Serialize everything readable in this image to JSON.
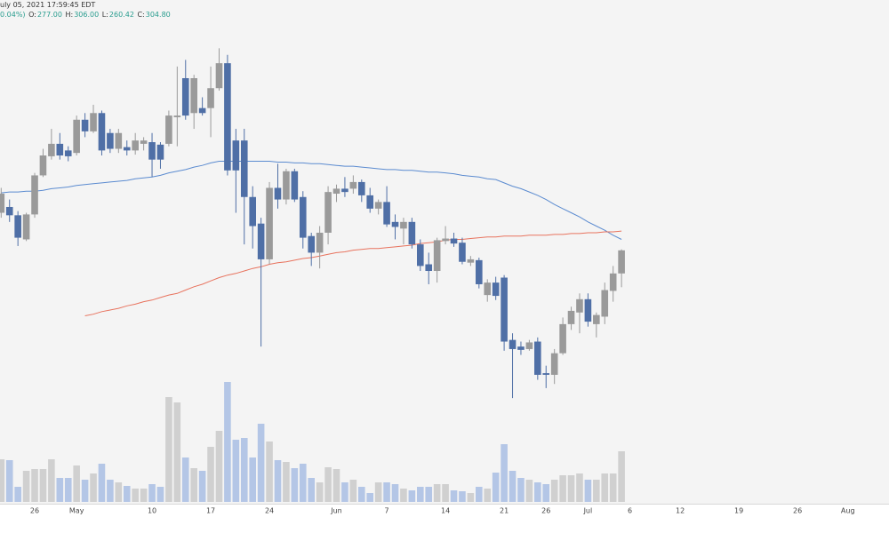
{
  "chart_data": {
    "type": "candlestick",
    "header": {
      "datetime": "uly 05, 2021 17:59:45 EDT",
      "change": "0.04%)",
      "o_label": "O:",
      "o_value": "277.00",
      "h_label": "H:",
      "h_value": "306.00",
      "l_label": "L:",
      "l_value": "260.42",
      "c_label": "C:",
      "c_value": "304.80"
    },
    "categories": [
      null,
      null,
      null,
      null,
      "26",
      null,
      null,
      null,
      null,
      "May",
      null,
      null,
      null,
      null,
      null,
      null,
      null,
      null,
      "10",
      null,
      null,
      null,
      null,
      null,
      null,
      "17",
      null,
      null,
      null,
      null,
      null,
      null,
      "24",
      null,
      null,
      null,
      null,
      null,
      null,
      null,
      "Jun",
      null,
      null,
      null,
      null,
      null,
      "7",
      null,
      null,
      null,
      null,
      null,
      null,
      "14",
      null,
      null,
      null,
      null,
      null,
      null,
      "21",
      null,
      null,
      null,
      null,
      "26",
      null,
      null,
      null,
      null,
      "Jul",
      null,
      null,
      null,
      null,
      "6",
      null,
      null,
      null,
      null,
      null,
      "12",
      null,
      null,
      null,
      null,
      null,
      null,
      "19",
      null,
      null,
      null,
      null,
      null,
      null,
      "26",
      null,
      null,
      null,
      null,
      null,
      "Aug",
      null,
      null,
      null,
      null
    ],
    "open": [
      350,
      357,
      347,
      318,
      348,
      395,
      418,
      433,
      425,
      422,
      462,
      448,
      470,
      446,
      427,
      429,
      425,
      433,
      435,
      432,
      433,
      465,
      512,
      470,
      476,
      476,
      500,
      530,
      437,
      437,
      369,
      337,
      294,
      380,
      366,
      400,
      369,
      322,
      302,
      326,
      373,
      379,
      379,
      387,
      371,
      355,
      363,
      339,
      331,
      339,
      312,
      288,
      280,
      316,
      319,
      314,
      290,
      293,
      251,
      266,
      272,
      197,
      189,
      186,
      195,
      157,
      155,
      181,
      216,
      230,
      246,
      216,
      225,
      256,
      277,
      null,
      null,
      null,
      null,
      null,
      null,
      null,
      null,
      null,
      null,
      null,
      null,
      null,
      null,
      null,
      null,
      null,
      null,
      null,
      null,
      null,
      null,
      null,
      null,
      null,
      null,
      null,
      null,
      null,
      null,
      null
    ],
    "high": [
      380,
      366,
      352,
      350,
      398,
      427,
      451,
      446,
      430,
      467,
      470,
      480,
      473,
      451,
      451,
      437,
      446,
      441,
      446,
      435,
      473,
      526,
      534,
      516,
      489,
      526,
      548,
      540,
      451,
      451,
      382,
      344,
      387,
      409,
      403,
      403,
      376,
      326,
      334,
      382,
      384,
      393,
      395,
      390,
      380,
      366,
      382,
      348,
      344,
      344,
      318,
      302,
      320,
      334,
      326,
      320,
      298,
      296,
      270,
      273,
      275,
      205,
      195,
      197,
      200,
      166,
      186,
      224,
      237,
      253,
      253,
      230,
      266,
      286,
      306,
      null,
      null,
      null,
      null,
      null,
      null,
      null,
      null,
      null,
      null,
      null,
      null,
      null,
      null,
      null,
      null,
      null,
      null,
      null,
      null,
      null,
      null,
      null,
      null,
      null,
      null,
      null,
      null,
      null,
      null,
      null
    ],
    "low": [
      344,
      339,
      310,
      316,
      344,
      393,
      414,
      414,
      412,
      419,
      441,
      446,
      419,
      422,
      422,
      419,
      420,
      425,
      393,
      403,
      430,
      430,
      462,
      451,
      467,
      441,
      497,
      395,
      350,
      312,
      307,
      189,
      288,
      355,
      360,
      363,
      307,
      286,
      283,
      312,
      363,
      369,
      373,
      363,
      350,
      348,
      333,
      318,
      312,
      307,
      280,
      264,
      266,
      312,
      309,
      288,
      286,
      259,
      243,
      245,
      184,
      127,
      179,
      184,
      149,
      139,
      144,
      179,
      209,
      205,
      213,
      200,
      216,
      243,
      260.42,
      null,
      null,
      null,
      null,
      null,
      null,
      null,
      null,
      null,
      null,
      null,
      null,
      null,
      null,
      null,
      null,
      null,
      null,
      null,
      null,
      null,
      null,
      null,
      null,
      null,
      null,
      null,
      null,
      null,
      null,
      null
    ],
    "close": [
      373,
      347,
      320,
      348,
      395,
      419,
      433,
      419,
      418,
      462,
      448,
      470,
      425,
      427,
      446,
      425,
      437,
      437,
      414,
      414,
      467,
      467,
      467,
      512,
      470,
      500,
      530,
      401,
      401,
      369,
      334,
      294,
      380,
      366,
      400,
      366,
      320,
      302,
      326,
      375,
      379,
      375,
      387,
      371,
      355,
      363,
      336,
      333,
      339,
      312,
      286,
      280,
      317,
      319,
      313,
      291,
      294,
      264,
      266,
      250,
      195,
      186,
      185,
      194,
      155,
      155,
      181,
      216,
      232,
      246,
      219,
      227,
      257,
      277,
      304.8,
      null,
      null,
      null,
      null,
      null,
      null,
      null,
      null,
      null,
      null,
      null,
      null,
      null,
      null,
      null,
      null,
      null,
      null,
      null,
      null,
      null,
      null,
      null,
      null,
      null,
      null,
      null,
      null,
      null,
      null,
      null
    ],
    "volume": [
      48,
      47,
      17,
      35,
      37,
      37,
      48,
      27,
      27,
      41,
      25,
      32,
      43,
      25,
      22,
      18,
      15,
      15,
      20,
      17,
      118,
      112,
      50,
      38,
      35,
      62,
      80,
      135,
      70,
      72,
      50,
      88,
      68,
      47,
      45,
      38,
      43,
      27,
      22,
      39,
      37,
      22,
      25,
      17,
      10,
      22,
      22,
      20,
      15,
      13,
      17,
      17,
      20,
      20,
      13,
      12,
      10,
      17,
      15,
      33,
      65,
      35,
      27,
      25,
      22,
      20,
      25,
      30,
      30,
      32,
      25,
      25,
      32,
      32,
      57,
      null,
      null,
      null,
      null,
      null,
      null,
      null,
      null,
      null,
      null,
      null,
      null,
      null,
      null,
      null,
      null,
      null,
      null,
      null,
      null,
      null,
      null,
      null,
      null,
      null,
      null,
      null,
      null,
      null,
      null,
      null
    ],
    "ma_lines": [
      {
        "color": "#5b8bd0",
        "values": [
          374,
          375,
          375,
          376,
          376,
          377,
          379,
          380,
          381,
          383,
          384,
          385,
          386,
          387,
          388,
          389,
          391,
          392,
          393,
          395,
          398,
          400,
          402,
          405,
          407,
          410,
          412,
          412,
          412,
          412,
          412,
          412,
          412,
          411,
          411,
          410,
          410,
          409,
          409,
          408,
          407,
          406,
          406,
          405,
          404,
          403,
          402,
          402,
          401,
          401,
          400,
          399,
          399,
          398,
          397,
          395,
          394,
          393,
          391,
          390,
          386,
          382,
          379,
          375,
          371,
          366,
          360,
          355,
          350,
          345,
          339,
          334,
          329,
          323,
          318,
          null,
          null,
          null,
          null,
          null,
          null,
          null,
          null,
          null,
          null,
          null,
          null,
          null,
          null,
          null,
          null,
          null,
          null,
          null,
          null,
          null,
          null,
          null,
          null,
          null,
          null,
          null,
          null,
          null,
          null,
          null
        ]
      },
      {
        "color": "#e8735e",
        "values": [
          null,
          null,
          null,
          null,
          null,
          null,
          null,
          null,
          null,
          null,
          226,
          228,
          231,
          233,
          235,
          238,
          240,
          243,
          245,
          248,
          251,
          253,
          257,
          261,
          264,
          268,
          272,
          275,
          277,
          280,
          283,
          285,
          288,
          290,
          291,
          293,
          295,
          296,
          298,
          300,
          302,
          303,
          305,
          306,
          307,
          307,
          308,
          309,
          310,
          311,
          313,
          314,
          315,
          317,
          318,
          318,
          319,
          320,
          321,
          321,
          322,
          322,
          322,
          323,
          323,
          323,
          324,
          324,
          325,
          325,
          326,
          326,
          327,
          327,
          328,
          null,
          null,
          null,
          null,
          null,
          null,
          null,
          null,
          null,
          null,
          null,
          null,
          null,
          null,
          null,
          null,
          null,
          null,
          null,
          null,
          null,
          null,
          null,
          null,
          null,
          null,
          null,
          null,
          null,
          null,
          null
        ]
      }
    ],
    "up_color": "#9a9a9a",
    "down_color": "#4f6fa6",
    "volume_up_color": "#d0d0d0",
    "volume_down_color": "#b4c6e6",
    "ylim": [
      125,
      574
    ],
    "volume_ylim": [
      0,
      150
    ]
  }
}
